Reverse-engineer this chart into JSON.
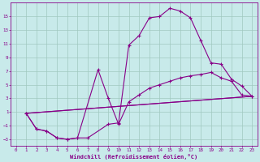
{
  "xlabel": "Windchill (Refroidissement éolien,°C)",
  "bg_color": "#c8eaea",
  "grid_color": "#a0c8c0",
  "line_color": "#880088",
  "ylim": [
    -4,
    17
  ],
  "xlim": [
    -0.5,
    23.5
  ],
  "yticks": [
    -3,
    -1,
    1,
    3,
    5,
    7,
    9,
    11,
    13,
    15
  ],
  "xticks": [
    0,
    1,
    2,
    3,
    4,
    5,
    6,
    7,
    8,
    9,
    10,
    11,
    12,
    13,
    14,
    15,
    16,
    17,
    18,
    19,
    20,
    21,
    22,
    23
  ],
  "line1_x": [
    1,
    2,
    3,
    4,
    5,
    6,
    7,
    9,
    10,
    11,
    12,
    13,
    14,
    15,
    16,
    17,
    18,
    19,
    20,
    21,
    22,
    23
  ],
  "line1_y": [
    0.8,
    -1.5,
    -1.8,
    -2.8,
    -3.0,
    -2.8,
    -2.8,
    -0.8,
    -0.6,
    10.8,
    12.2,
    14.8,
    15.0,
    16.2,
    15.8,
    14.8,
    11.5,
    8.2,
    8.0,
    5.8,
    4.8,
    3.3
  ],
  "line2_x": [
    1,
    2,
    3,
    4,
    5,
    6,
    8,
    9,
    10,
    11,
    12,
    13,
    14,
    15,
    16,
    17,
    18,
    19,
    20,
    21,
    22,
    23
  ],
  "line2_y": [
    0.8,
    -1.5,
    -1.8,
    -2.8,
    -3.0,
    -2.8,
    7.2,
    3.0,
    -0.8,
    2.5,
    3.5,
    4.5,
    5.0,
    5.5,
    6.0,
    6.3,
    6.5,
    6.8,
    6.0,
    5.5,
    3.5,
    3.3
  ],
  "line3_x": [
    1,
    23
  ],
  "line3_y": [
    0.8,
    3.3
  ],
  "line4_x": [
    1,
    23
  ],
  "line4_y": [
    0.8,
    3.3
  ]
}
